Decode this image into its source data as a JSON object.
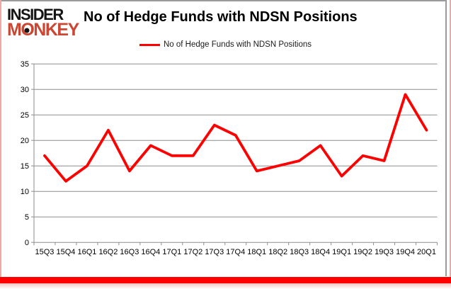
{
  "logo": {
    "top": "INSIDER",
    "monkey_m": "M",
    "monkey_o": "O",
    "monkey_rest": "NKEY"
  },
  "chart_data": {
    "type": "line",
    "title": "No of Hedge Funds with NDSN Positions",
    "categories": [
      "15Q3",
      "15Q4",
      "16Q1",
      "16Q2",
      "16Q3",
      "16Q4",
      "17Q1",
      "17Q2",
      "17Q3",
      "17Q4",
      "18Q1",
      "18Q2",
      "18Q3",
      "18Q4",
      "19Q1",
      "19Q2",
      "19Q3",
      "19Q4",
      "20Q1"
    ],
    "series": [
      {
        "name": "No of Hedge Funds with NDSN Positions",
        "color": "#ff0000",
        "values": [
          17,
          12,
          15,
          22,
          14,
          19,
          17,
          17,
          23,
          21,
          14,
          15,
          16,
          19,
          13,
          17,
          16,
          29,
          22
        ]
      }
    ],
    "ylim": [
      0,
      35
    ],
    "yticks": [
      0,
      5,
      10,
      15,
      20,
      25,
      30,
      35
    ],
    "xlabel": "",
    "ylabel": "",
    "grid": "horizontal",
    "legend_position": "top",
    "gridline_color": "#8e8e8e",
    "tick_label_color": "#000000"
  },
  "colors": {
    "series_red": "#ff0000",
    "logo_red": "#cb4733",
    "frame_pink": "#f0a8a2",
    "bottom_bar_red": "#ff0000",
    "gridline_gray": "#8e8e8e"
  }
}
